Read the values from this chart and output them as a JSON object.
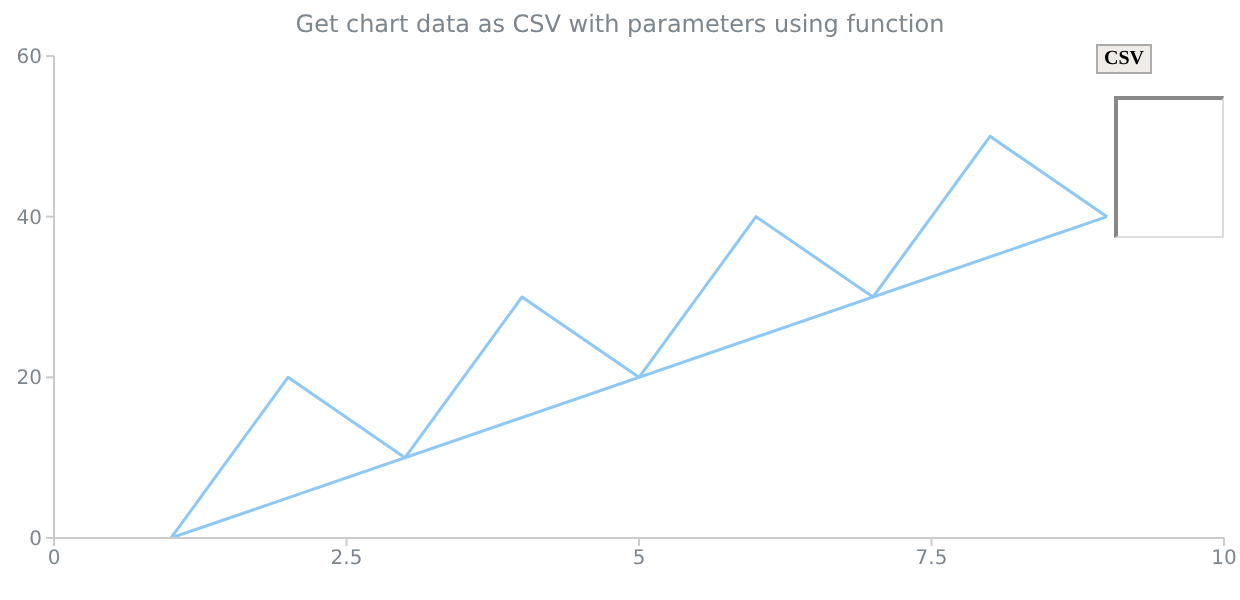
{
  "chart_data": {
    "type": "line",
    "title": "Get chart data as CSV with parameters using function",
    "x": [
      1,
      2,
      3,
      4,
      5,
      6,
      7,
      8,
      9
    ],
    "series": [
      {
        "color": "#8ec8f6",
        "values": [
          0,
          20,
          10,
          30,
          20,
          40,
          30,
          50,
          40
        ]
      },
      {
        "color": "#8ec8f6",
        "x": [
          9,
          1
        ],
        "values": [
          40,
          0
        ]
      }
    ],
    "xlim": [
      0,
      10
    ],
    "xticks": [
      0,
      2.5,
      5,
      7.5,
      10
    ],
    "ylim": [
      0,
      60
    ],
    "yticks": [
      0,
      20,
      40,
      60
    ],
    "grid": false,
    "marker": "none",
    "line_style": "solid",
    "annotations": [
      "CSV"
    ]
  }
}
